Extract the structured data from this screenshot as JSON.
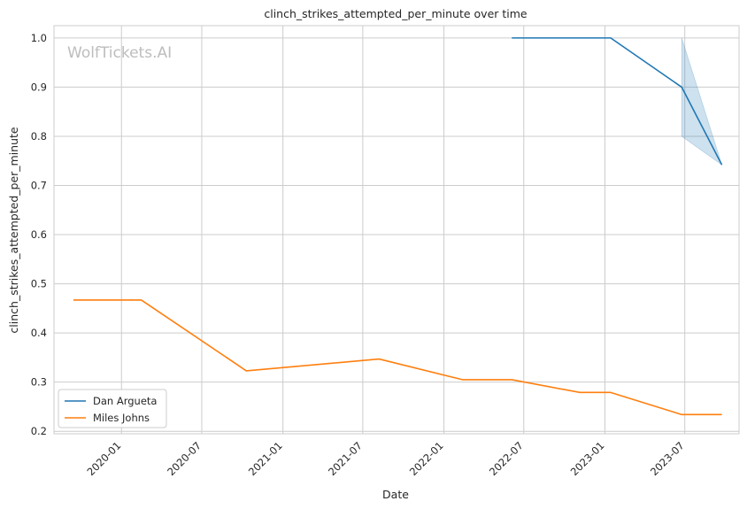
{
  "chart_data": {
    "type": "line",
    "title": "clinch_strikes_attempted_per_minute over time",
    "xlabel": "Date",
    "ylabel": "clinch_strikes_attempted_per_minute",
    "watermark": "WolfTickets.AI",
    "grid": true,
    "legend_position": "lower-left",
    "x_type": "date",
    "xlim": [
      "2019-08-01",
      "2023-11-01"
    ],
    "ylim": [
      0.195,
      1.025
    ],
    "x_ticks": [
      "2020-01-01",
      "2020-07-01",
      "2021-01-01",
      "2021-07-01",
      "2022-01-01",
      "2022-07-01",
      "2023-01-01",
      "2023-07-01"
    ],
    "x_tick_labels": [
      "2020-01",
      "2020-07",
      "2021-01",
      "2021-07",
      "2022-01",
      "2022-07",
      "2023-01",
      "2023-07"
    ],
    "y_ticks": [
      0.2,
      0.3,
      0.4,
      0.5,
      0.6,
      0.7,
      0.8,
      0.9,
      1.0
    ],
    "y_tick_labels": [
      "0.2",
      "0.3",
      "0.4",
      "0.5",
      "0.6",
      "0.7",
      "0.8",
      "0.9",
      "1.0"
    ],
    "series": [
      {
        "name": "Dan Argueta",
        "color": "#1f77b4",
        "x": [
          "2022-06-04",
          "2023-01-14",
          "2023-06-24",
          "2023-09-23"
        ],
        "y": [
          1.0,
          1.0,
          0.9,
          0.742
        ],
        "band": {
          "x": [
            "2023-06-24",
            "2023-09-23"
          ],
          "lower": [
            0.8,
            0.742
          ],
          "upper": [
            1.0,
            0.742
          ]
        }
      },
      {
        "name": "Miles Johns",
        "color": "#ff7f0e",
        "x": [
          "2019-09-14",
          "2020-02-15",
          "2020-10-10",
          "2021-08-07",
          "2022-02-12",
          "2022-06-04",
          "2022-11-05",
          "2023-01-14",
          "2023-06-24",
          "2023-09-23"
        ],
        "y": [
          0.467,
          0.467,
          0.323,
          0.347,
          0.305,
          0.305,
          0.279,
          0.279,
          0.234,
          0.234
        ]
      }
    ]
  }
}
